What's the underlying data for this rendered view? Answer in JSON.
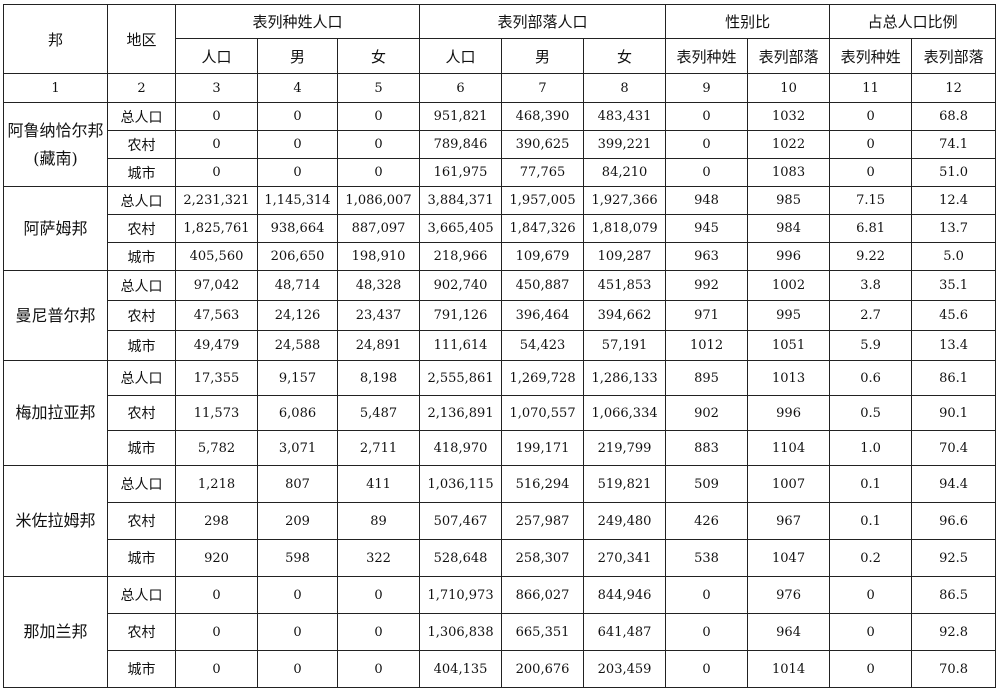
{
  "header": {
    "state": "邦",
    "region": "地区",
    "group_sc": "表列种姓人口",
    "group_st": "表列部落人口",
    "group_ratio": "性别比",
    "group_share": "占总人口比例",
    "sub": [
      "人口",
      "男",
      "女",
      "人口",
      "男",
      "女",
      "表列种姓",
      "表列部落",
      "表列种姓",
      "表列部落"
    ],
    "col_numbers": [
      "1",
      "2",
      "3",
      "4",
      "5",
      "6",
      "7",
      "8",
      "9",
      "10",
      "11",
      "12"
    ]
  },
  "states": [
    {
      "name": "阿鲁纳恰尔邦(藏南)",
      "rows": [
        {
          "region": "总人口",
          "vals": [
            "0",
            "0",
            "0",
            "951,821",
            "468,390",
            "483,431",
            "0",
            "1032",
            "0",
            "68.8"
          ]
        },
        {
          "region": "农村",
          "vals": [
            "0",
            "0",
            "0",
            "789,846",
            "390,625",
            "399,221",
            "0",
            "1022",
            "0",
            "74.1"
          ]
        },
        {
          "region": "城市",
          "vals": [
            "0",
            "0",
            "0",
            "161,975",
            "77,765",
            "84,210",
            "0",
            "1083",
            "0",
            "51.0"
          ]
        }
      ]
    },
    {
      "name": "阿萨姆邦",
      "rows": [
        {
          "region": "总人口",
          "vals": [
            "2,231,321",
            "1,145,314",
            "1,086,007",
            "3,884,371",
            "1,957,005",
            "1,927,366",
            "948",
            "985",
            "7.15",
            "12.4"
          ]
        },
        {
          "region": "农村",
          "vals": [
            "1,825,761",
            "938,664",
            "887,097",
            "3,665,405",
            "1,847,326",
            "1,818,079",
            "945",
            "984",
            "6.81",
            "13.7"
          ]
        },
        {
          "region": "城市",
          "vals": [
            "405,560",
            "206,650",
            "198,910",
            "218,966",
            "109,679",
            "109,287",
            "963",
            "996",
            "9.22",
            "5.0"
          ]
        }
      ]
    },
    {
      "name": "曼尼普尔邦",
      "rows": [
        {
          "region": "总人口",
          "vals": [
            "97,042",
            "48,714",
            "48,328",
            "902,740",
            "450,887",
            "451,853",
            "992",
            "1002",
            "3.8",
            "35.1"
          ]
        },
        {
          "region": "农村",
          "vals": [
            "47,563",
            "24,126",
            "23,437",
            "791,126",
            "396,464",
            "394,662",
            "971",
            "995",
            "2.7",
            "45.6"
          ]
        },
        {
          "region": "城市",
          "vals": [
            "49,479",
            "24,588",
            "24,891",
            "111,614",
            "54,423",
            "57,191",
            "1012",
            "1051",
            "5.9",
            "13.4"
          ]
        }
      ]
    },
    {
      "name": "梅加拉亚邦",
      "rows": [
        {
          "region": "总人口",
          "vals": [
            "17,355",
            "9,157",
            "8,198",
            "2,555,861",
            "1,269,728",
            "1,286,133",
            "895",
            "1013",
            "0.6",
            "86.1"
          ]
        },
        {
          "region": "农村",
          "vals": [
            "11,573",
            "6,086",
            "5,487",
            "2,136,891",
            "1,070,557",
            "1,066,334",
            "902",
            "996",
            "0.5",
            "90.1"
          ]
        },
        {
          "region": "城市",
          "vals": [
            "5,782",
            "3,071",
            "2,711",
            "418,970",
            "199,171",
            "219,799",
            "883",
            "1104",
            "1.0",
            "70.4"
          ]
        }
      ]
    },
    {
      "name": "米佐拉姆邦",
      "rows": [
        {
          "region": "总人口",
          "vals": [
            "1,218",
            "807",
            "411",
            "1,036,115",
            "516,294",
            "519,821",
            "509",
            "1007",
            "0.1",
            "94.4"
          ]
        },
        {
          "region": "农村",
          "vals": [
            "298",
            "209",
            "89",
            "507,467",
            "257,987",
            "249,480",
            "426",
            "967",
            "0.1",
            "96.6"
          ]
        },
        {
          "region": "城市",
          "vals": [
            "920",
            "598",
            "322",
            "528,648",
            "258,307",
            "270,341",
            "538",
            "1047",
            "0.2",
            "92.5"
          ]
        }
      ]
    },
    {
      "name": "那加兰邦",
      "rows": [
        {
          "region": "总人口",
          "vals": [
            "0",
            "0",
            "0",
            "1,710,973",
            "866,027",
            "844,946",
            "0",
            "976",
            "0",
            "86.5"
          ]
        },
        {
          "region": "农村",
          "vals": [
            "0",
            "0",
            "0",
            "1,306,838",
            "665,351",
            "641,487",
            "0",
            "964",
            "0",
            "92.8"
          ]
        },
        {
          "region": "城市",
          "vals": [
            "0",
            "0",
            "0",
            "404,135",
            "200,676",
            "203,459",
            "0",
            "1014",
            "0",
            "70.8"
          ]
        }
      ]
    }
  ]
}
